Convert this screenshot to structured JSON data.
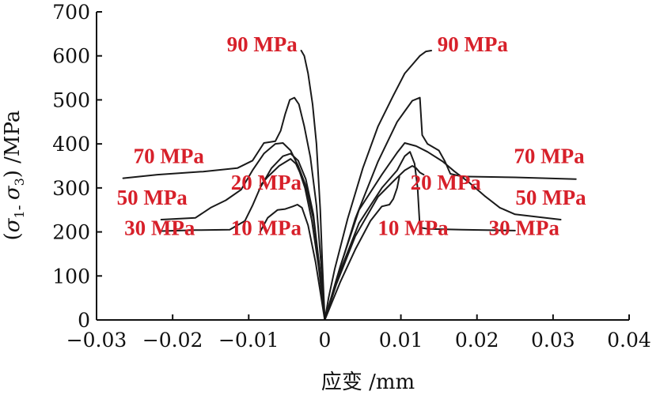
{
  "chart_data": {
    "type": "line",
    "title": "",
    "xlabel": "应变 /mm",
    "ylabel_parts": [
      "(",
      "σ",
      "1",
      "- ",
      "σ",
      "3",
      ") /MPa"
    ],
    "xlim": [
      -0.03,
      0.04
    ],
    "ylim": [
      0,
      700
    ],
    "xticks": [
      "-0.03",
      "-0.02",
      "-0.01",
      "0",
      "0.01",
      "0.02",
      "0.03",
      "0.04"
    ],
    "yticks": [
      "0",
      "100",
      "200",
      "300",
      "400",
      "500",
      "600",
      "700"
    ],
    "grid": false,
    "label_color": "#d7202a",
    "curve_color": "#1a1a1a",
    "series": [
      {
        "name": "90 MPa",
        "points": [
          [
            -0.0031,
            612
          ],
          [
            -0.0027,
            600
          ],
          [
            -0.0022,
            560
          ],
          [
            -0.0016,
            490
          ],
          [
            -0.0011,
            400
          ],
          [
            -0.0006,
            250
          ],
          [
            -0.0003,
            120
          ],
          [
            0,
            0
          ],
          [
            0.0005,
            50
          ],
          [
            0.0013,
            115
          ],
          [
            0.003,
            230
          ],
          [
            0.005,
            345
          ],
          [
            0.007,
            440
          ],
          [
            0.009,
            510
          ],
          [
            0.0105,
            560
          ],
          [
            0.0115,
            580
          ],
          [
            0.0125,
            600
          ],
          [
            0.0133,
            610
          ],
          [
            0.014,
            612
          ]
        ]
      },
      {
        "name": "70 MPa",
        "points": [
          [
            -0.0265,
            322
          ],
          [
            -0.022,
            330
          ],
          [
            -0.016,
            337
          ],
          [
            -0.0115,
            345
          ],
          [
            -0.0095,
            362
          ],
          [
            -0.008,
            402
          ],
          [
            -0.0065,
            406
          ],
          [
            -0.0058,
            430
          ],
          [
            -0.0052,
            468
          ],
          [
            -0.0046,
            500
          ],
          [
            -0.004,
            505
          ],
          [
            -0.0034,
            490
          ],
          [
            -0.0027,
            440
          ],
          [
            -0.0019,
            370
          ],
          [
            -0.0011,
            260
          ],
          [
            -0.0005,
            130
          ],
          [
            0,
            0
          ],
          [
            0.0015,
            90
          ],
          [
            0.004,
            230
          ],
          [
            0.007,
            360
          ],
          [
            0.0095,
            450
          ],
          [
            0.0115,
            498
          ],
          [
            0.0125,
            505
          ],
          [
            0.0128,
            420
          ],
          [
            0.0135,
            400
          ],
          [
            0.015,
            385
          ],
          [
            0.0158,
            360
          ],
          [
            0.0165,
            332
          ],
          [
            0.018,
            326
          ],
          [
            0.025,
            324
          ],
          [
            0.033,
            320
          ]
        ]
      },
      {
        "name": "50 MPa",
        "points": [
          [
            -0.0215,
            228
          ],
          [
            -0.017,
            232
          ],
          [
            -0.015,
            255
          ],
          [
            -0.013,
            272
          ],
          [
            -0.011,
            296
          ],
          [
            -0.0095,
            340
          ],
          [
            -0.008,
            378
          ],
          [
            -0.0065,
            400
          ],
          [
            -0.0055,
            402
          ],
          [
            -0.0045,
            385
          ],
          [
            -0.0035,
            350
          ],
          [
            -0.0025,
            305
          ],
          [
            -0.0015,
            230
          ],
          [
            -0.0007,
            120
          ],
          [
            0,
            0
          ],
          [
            0.002,
            120
          ],
          [
            0.0045,
            250
          ],
          [
            0.0075,
            330
          ],
          [
            0.0095,
            380
          ],
          [
            0.0105,
            402
          ],
          [
            0.012,
            395
          ],
          [
            0.0135,
            382
          ],
          [
            0.0155,
            360
          ],
          [
            0.017,
            338
          ],
          [
            0.019,
            312
          ],
          [
            0.021,
            282
          ],
          [
            0.023,
            255
          ],
          [
            0.025,
            240
          ],
          [
            0.029,
            232
          ],
          [
            0.031,
            228
          ]
        ]
      },
      {
        "name": "30 MPa",
        "points": [
          [
            -0.0215,
            202
          ],
          [
            -0.017,
            204
          ],
          [
            -0.0125,
            205
          ],
          [
            -0.0105,
            225
          ],
          [
            -0.0095,
            260
          ],
          [
            -0.0085,
            300
          ],
          [
            -0.007,
            345
          ],
          [
            -0.0055,
            372
          ],
          [
            -0.0045,
            378
          ],
          [
            -0.0035,
            362
          ],
          [
            -0.0025,
            320
          ],
          [
            -0.0015,
            240
          ],
          [
            -0.0007,
            120
          ],
          [
            0,
            0
          ],
          [
            0.002,
            110
          ],
          [
            0.0045,
            220
          ],
          [
            0.0075,
            300
          ],
          [
            0.0095,
            340
          ],
          [
            0.0105,
            372
          ],
          [
            0.0112,
            382
          ],
          [
            0.0118,
            355
          ],
          [
            0.0122,
            300
          ],
          [
            0.0125,
            210
          ],
          [
            0.0135,
            207
          ],
          [
            0.018,
            205
          ],
          [
            0.025,
            203
          ]
        ]
      },
      {
        "name": "20 MPa",
        "points": [
          [
            -0.0085,
            305
          ],
          [
            -0.0075,
            325
          ],
          [
            -0.006,
            350
          ],
          [
            -0.0045,
            366
          ],
          [
            -0.0038,
            355
          ],
          [
            -0.0033,
            336
          ],
          [
            -0.0026,
            300
          ],
          [
            -0.0017,
            225
          ],
          [
            -0.0008,
            120
          ],
          [
            0,
            0
          ],
          [
            0.0015,
            80
          ],
          [
            0.004,
            190
          ],
          [
            0.007,
            280
          ],
          [
            0.009,
            315
          ],
          [
            0.0105,
            340
          ],
          [
            0.0115,
            350
          ],
          [
            0.012,
            345
          ],
          [
            0.0125,
            335
          ],
          [
            0.013,
            330
          ]
        ]
      },
      {
        "name": "10 MPa",
        "points": [
          [
            -0.0085,
            200
          ],
          [
            -0.0082,
            210
          ],
          [
            -0.0075,
            232
          ],
          [
            -0.0062,
            250
          ],
          [
            -0.0052,
            252
          ],
          [
            -0.0042,
            258
          ],
          [
            -0.0036,
            262
          ],
          [
            -0.003,
            255
          ],
          [
            -0.0022,
            215
          ],
          [
            -0.0012,
            130
          ],
          [
            0,
            0
          ],
          [
            0.002,
            85
          ],
          [
            0.004,
            160
          ],
          [
            0.006,
            225
          ],
          [
            0.0075,
            258
          ],
          [
            0.0085,
            262
          ],
          [
            0.009,
            275
          ],
          [
            0.0095,
            300
          ],
          [
            0.0098,
            325
          ]
        ]
      }
    ],
    "annotations": [
      {
        "text": "90 MPa",
        "x": -0.0036,
        "y": 610,
        "anchor": "end"
      },
      {
        "text": "90 MPa",
        "x": 0.0148,
        "y": 610,
        "anchor": "start"
      },
      {
        "text": "70 MPa",
        "x": -0.0205,
        "y": 356,
        "anchor": "middle"
      },
      {
        "text": "70 MPa",
        "x": 0.0295,
        "y": 356,
        "anchor": "middle"
      },
      {
        "text": "50 MPa",
        "x": -0.0227,
        "y": 262,
        "anchor": "middle"
      },
      {
        "text": "50 MPa",
        "x": 0.0297,
        "y": 262,
        "anchor": "middle"
      },
      {
        "text": "30 MPa",
        "x": -0.0217,
        "y": 193,
        "anchor": "middle"
      },
      {
        "text": "30 MPa",
        "x": 0.0262,
        "y": 193,
        "anchor": "middle"
      },
      {
        "text": "20 MPa",
        "x": -0.0077,
        "y": 296,
        "anchor": "middle"
      },
      {
        "text": "20 MPa",
        "x": 0.0159,
        "y": 296,
        "anchor": "middle"
      },
      {
        "text": "10 MPa",
        "x": -0.0077,
        "y": 193,
        "anchor": "middle"
      },
      {
        "text": "10 MPa",
        "x": 0.0116,
        "y": 193,
        "anchor": "middle"
      }
    ]
  }
}
